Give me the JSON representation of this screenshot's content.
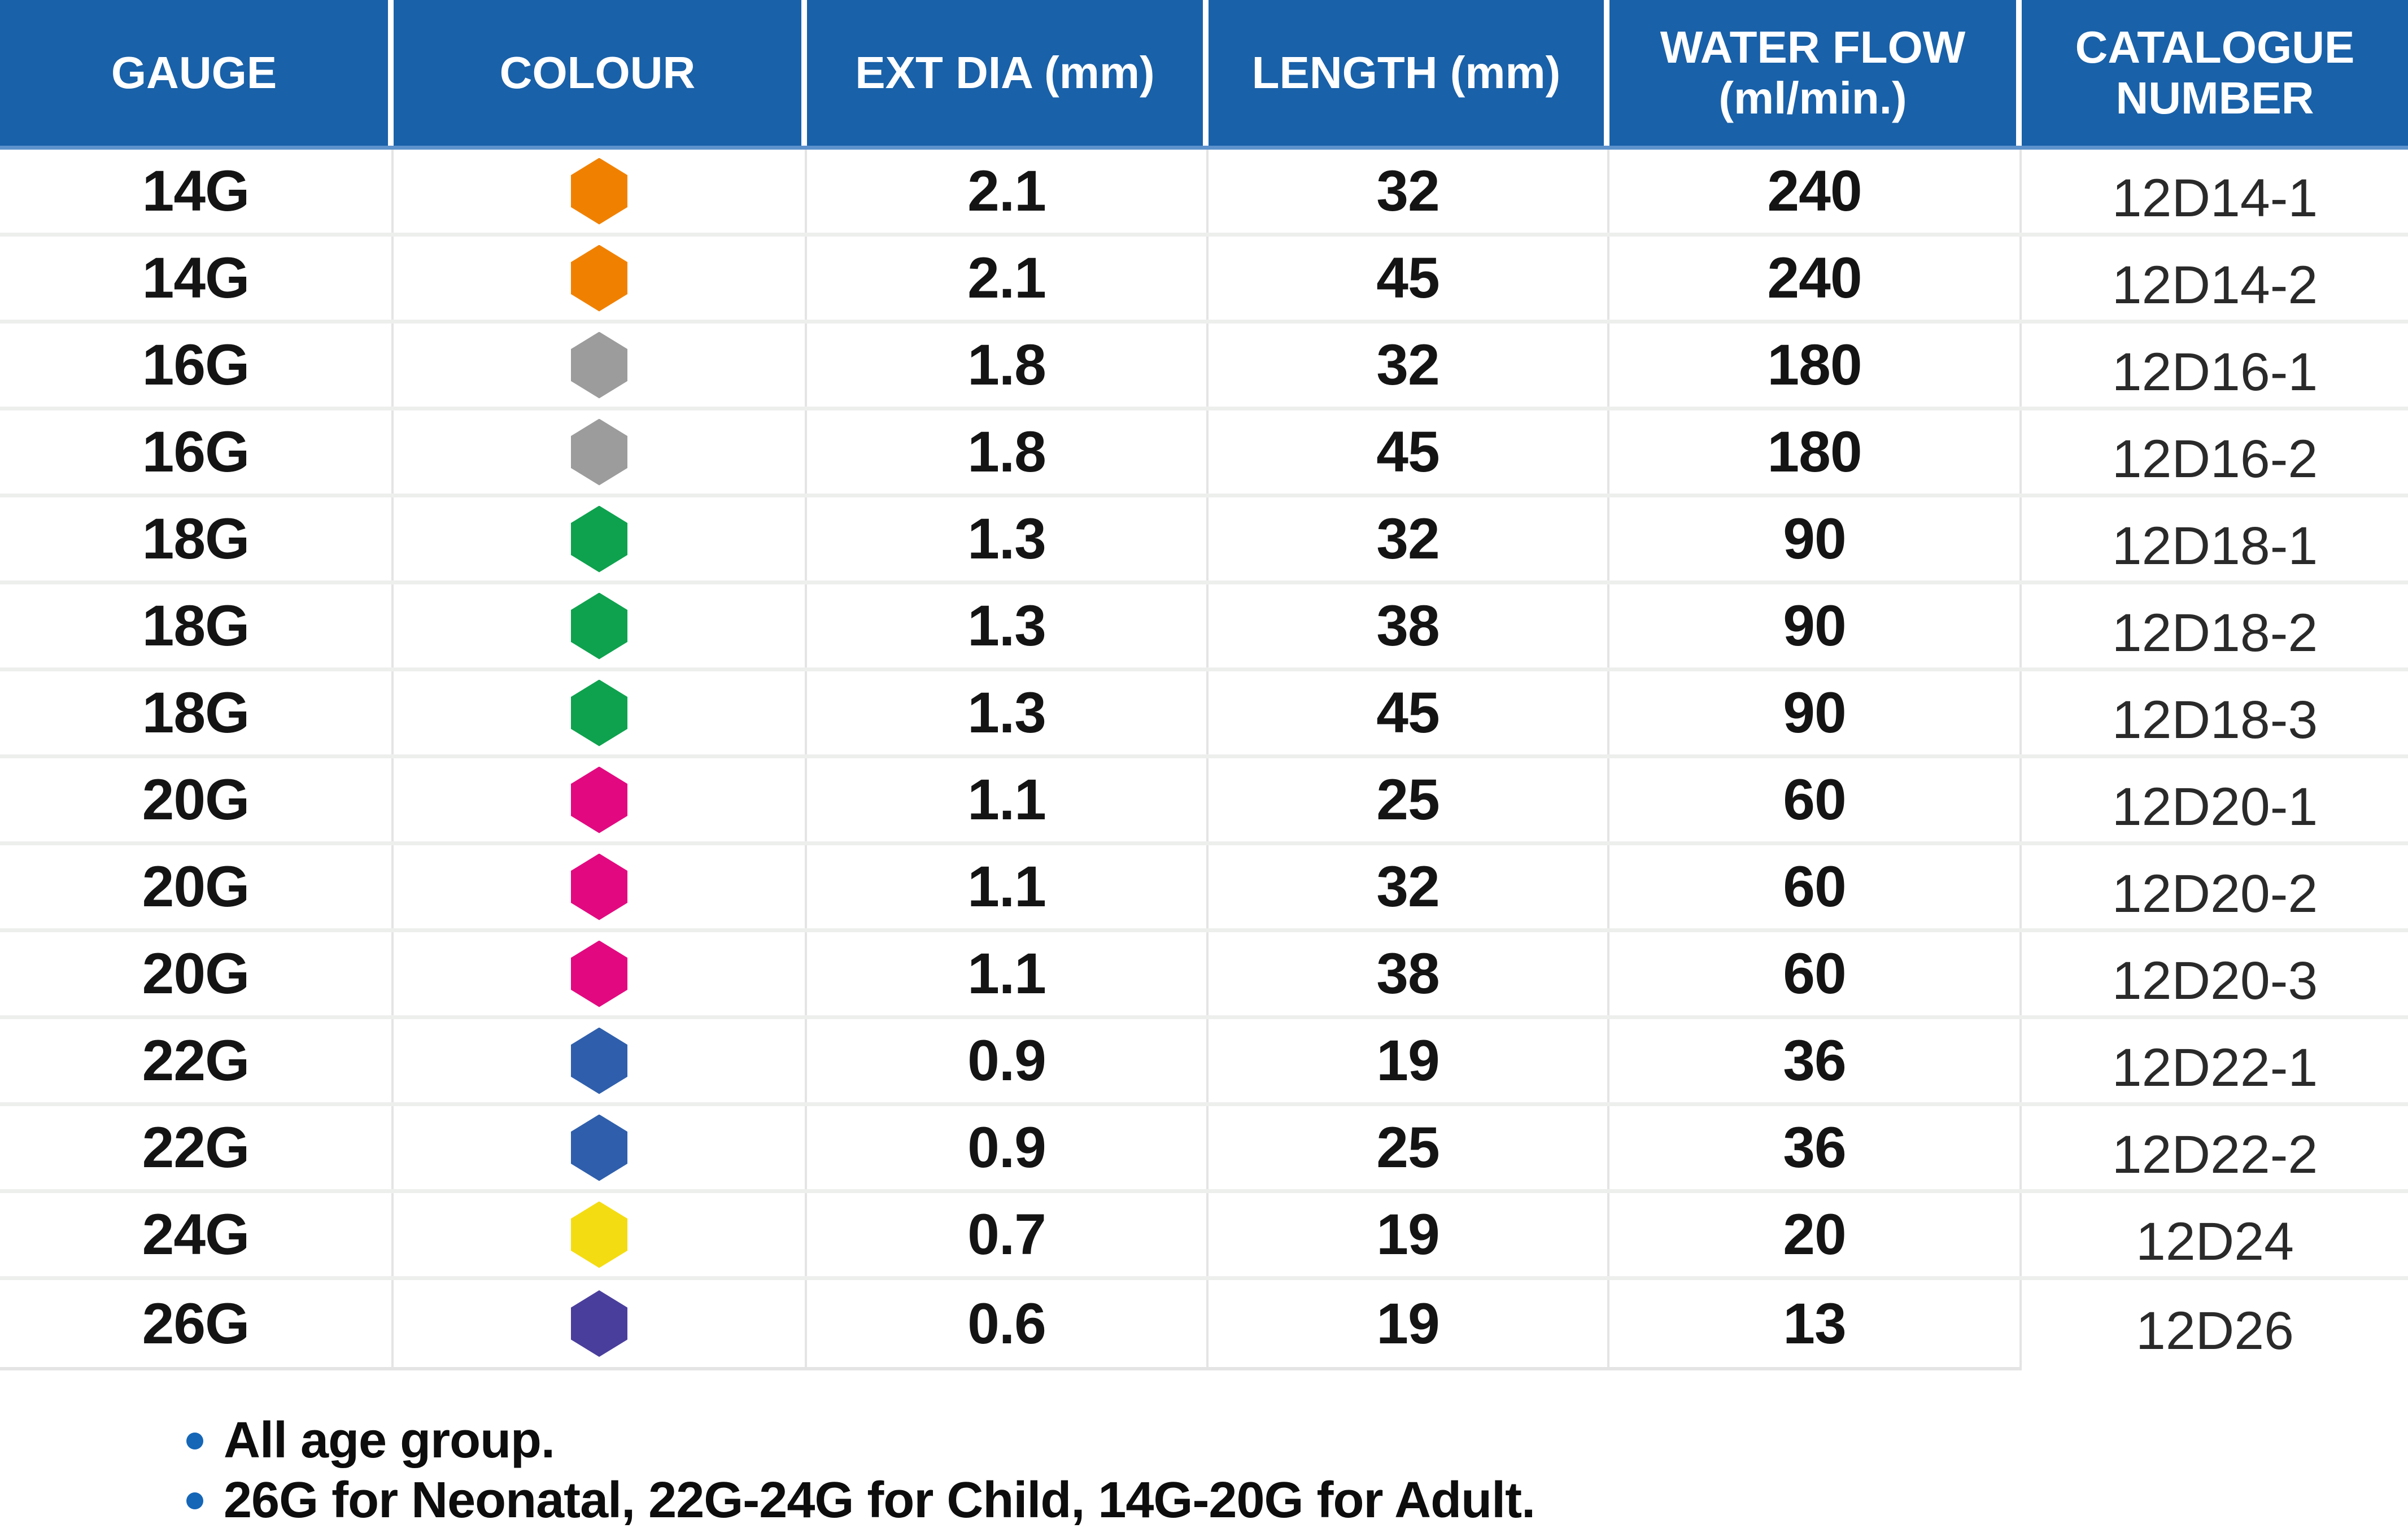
{
  "table": {
    "headers": [
      {
        "label": "GAUGE"
      },
      {
        "label": "COLOUR"
      },
      {
        "label": "EXT DIA (mm)"
      },
      {
        "label": "LENGTH (mm)"
      },
      {
        "label": "WATER FLOW (ml/min.)"
      },
      {
        "label": "CATALOGUE NUMBER"
      }
    ],
    "rows": [
      {
        "gauge": "14G",
        "colour_name": "orange",
        "colour_hex": "#F08100",
        "ext_dia": "2.1",
        "length": "32",
        "water_flow": "240",
        "catalogue": "12D14-1"
      },
      {
        "gauge": "14G",
        "colour_name": "orange",
        "colour_hex": "#F08100",
        "ext_dia": "2.1",
        "length": "45",
        "water_flow": "240",
        "catalogue": "12D14-2"
      },
      {
        "gauge": "16G",
        "colour_name": "grey",
        "colour_hex": "#9C9C9C",
        "ext_dia": "1.8",
        "length": "32",
        "water_flow": "180",
        "catalogue": "12D16-1"
      },
      {
        "gauge": "16G",
        "colour_name": "grey",
        "colour_hex": "#9C9C9C",
        "ext_dia": "1.8",
        "length": "45",
        "water_flow": "180",
        "catalogue": "12D16-2"
      },
      {
        "gauge": "18G",
        "colour_name": "green",
        "colour_hex": "#0EA24E",
        "ext_dia": "1.3",
        "length": "32",
        "water_flow": "90",
        "catalogue": "12D18-1"
      },
      {
        "gauge": "18G",
        "colour_name": "green",
        "colour_hex": "#0EA24E",
        "ext_dia": "1.3",
        "length": "38",
        "water_flow": "90",
        "catalogue": "12D18-2"
      },
      {
        "gauge": "18G",
        "colour_name": "green",
        "colour_hex": "#0EA24E",
        "ext_dia": "1.3",
        "length": "45",
        "water_flow": "90",
        "catalogue": "12D18-3"
      },
      {
        "gauge": "20G",
        "colour_name": "pink",
        "colour_hex": "#E20980",
        "ext_dia": "1.1",
        "length": "25",
        "water_flow": "60",
        "catalogue": "12D20-1"
      },
      {
        "gauge": "20G",
        "colour_name": "pink",
        "colour_hex": "#E20980",
        "ext_dia": "1.1",
        "length": "32",
        "water_flow": "60",
        "catalogue": "12D20-2"
      },
      {
        "gauge": "20G",
        "colour_name": "pink",
        "colour_hex": "#E20980",
        "ext_dia": "1.1",
        "length": "38",
        "water_flow": "60",
        "catalogue": "12D20-3"
      },
      {
        "gauge": "22G",
        "colour_name": "blue",
        "colour_hex": "#2F5FAC",
        "ext_dia": "0.9",
        "length": "19",
        "water_flow": "36",
        "catalogue": "12D22-1"
      },
      {
        "gauge": "22G",
        "colour_name": "blue",
        "colour_hex": "#2F5FAC",
        "ext_dia": "0.9",
        "length": "25",
        "water_flow": "36",
        "catalogue": "12D22-2"
      },
      {
        "gauge": "24G",
        "colour_name": "yellow",
        "colour_hex": "#F4DC12",
        "ext_dia": "0.7",
        "length": "19",
        "water_flow": "20",
        "catalogue": "12D24"
      },
      {
        "gauge": "26G",
        "colour_name": "purple",
        "colour_hex": "#4A3E9C",
        "ext_dia": "0.6",
        "length": "19",
        "water_flow": "13",
        "catalogue": "12D26"
      }
    ]
  },
  "notes": {
    "items": [
      "All age group.",
      "26G for Neonatal, 22G-24G for Child, 14G-20G for Adult."
    ]
  },
  "colors": {
    "header_bg": "#1961A9",
    "header_strip": "#5D92CC",
    "bullet_blue": "#1566B7",
    "row_sep": "#EDEFED",
    "col_sep": "#E4E4E4"
  }
}
